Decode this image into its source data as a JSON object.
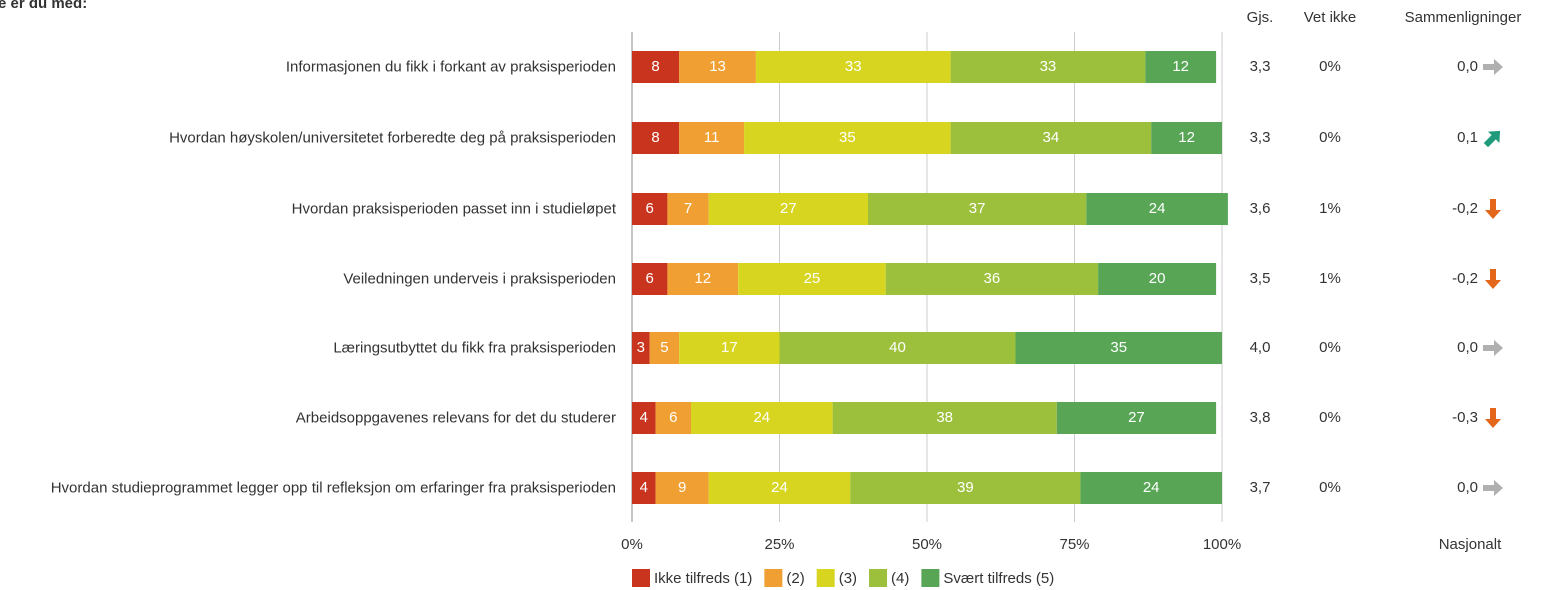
{
  "chart_data": {
    "type": "bar",
    "orientation": "horizontal",
    "stacked": true,
    "title": "e er du med:",
    "categories": [
      "Informasjonen du fikk i forkant av praksisperioden",
      "Hvordan høyskolen/universitetet forberedte deg på praksisperioden",
      "Hvordan praksisperioden passet inn i studieløpet",
      "Veiledningen underveis i praksisperioden",
      "Læringsutbyttet du fikk fra praksisperioden",
      "Arbeidsoppgavenes relevans for det du studerer",
      "Hvordan studieprogrammet legger opp til refleksjon om erfaringer fra praksisperioden"
    ],
    "series": [
      {
        "name": "Ikke tilfreds (1)",
        "color": "#c9341e",
        "values": [
          8,
          8,
          6,
          6,
          3,
          4,
          4
        ]
      },
      {
        "name": "(2)",
        "color": "#f0a032",
        "values": [
          13,
          11,
          7,
          12,
          5,
          6,
          9
        ]
      },
      {
        "name": "(3)",
        "color": "#d8d520",
        "values": [
          33,
          35,
          27,
          25,
          17,
          24,
          24
        ]
      },
      {
        "name": "(4)",
        "color": "#9dc03c",
        "values": [
          33,
          34,
          37,
          36,
          40,
          38,
          39
        ]
      },
      {
        "name": "Svært tilfreds (5)",
        "color": "#58a655",
        "values": [
          12,
          12,
          24,
          20,
          35,
          27,
          24
        ]
      }
    ],
    "xlim": [
      0,
      100
    ],
    "xticks": [
      {
        "value": 0,
        "label": "0%"
      },
      {
        "value": 25,
        "label": "25%"
      },
      {
        "value": 50,
        "label": "50%"
      },
      {
        "value": 75,
        "label": "75%"
      },
      {
        "value": 100,
        "label": "100%"
      }
    ],
    "grid": true,
    "legend": "bottom",
    "columns": {
      "mean": {
        "header": "Gjs.",
        "values": [
          "3,3",
          "3,3",
          "3,6",
          "3,5",
          "4,0",
          "3,8",
          "3,7"
        ]
      },
      "unknown": {
        "header": "Vet ikke",
        "values": [
          "0%",
          "0%",
          "1%",
          "1%",
          "0%",
          "0%",
          "0%"
        ]
      },
      "comparison": {
        "header": "Sammenligninger",
        "footer": "Nasjonalt",
        "values": [
          "0,0",
          "0,1",
          "-0,2",
          "-0,2",
          "0,0",
          "-0,3",
          "0,0"
        ],
        "trend": [
          "right",
          "up",
          "down",
          "down",
          "right",
          "down",
          "right"
        ]
      }
    },
    "trend_colors": {
      "right": "#b0b0b0",
      "up": "#1f9a7a",
      "down": "#e4661a"
    }
  }
}
